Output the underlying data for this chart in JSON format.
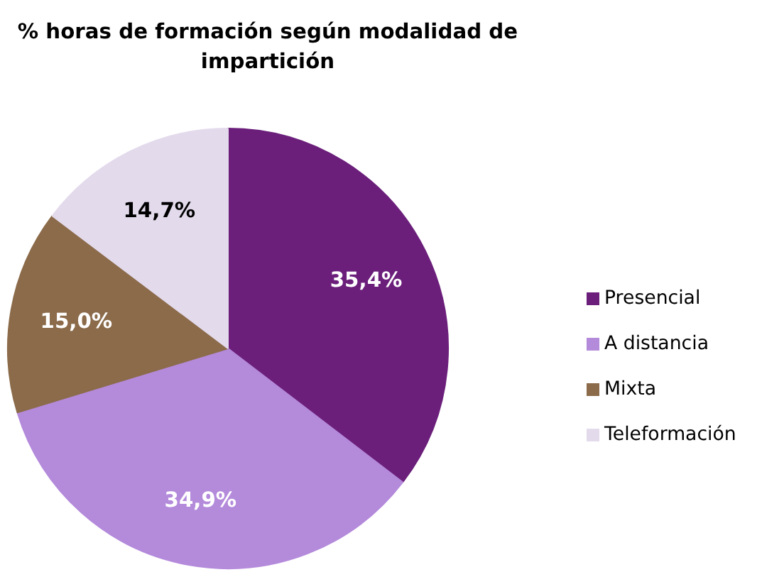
{
  "chart_data": {
    "type": "pie",
    "title": "% horas de formación según modalidad de impartición",
    "categories": [
      "Presencial",
      "A distancia",
      "Mixta",
      "Teleformación"
    ],
    "values": [
      35.4,
      34.9,
      15.0,
      14.7
    ],
    "colors": [
      "#6b1f7b",
      "#b48adb",
      "#8b6b4a",
      "#e3daec"
    ],
    "value_labels": [
      "35,4%",
      "34,9%",
      "15,0%",
      "14,7%"
    ],
    "legend": "right"
  }
}
